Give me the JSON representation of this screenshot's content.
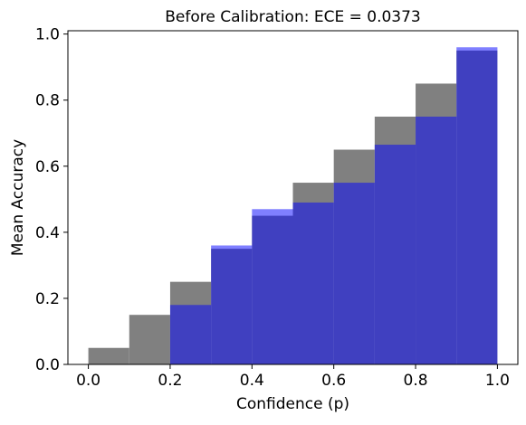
{
  "chart_data": {
    "type": "bar",
    "title": "Before Calibration: ECE = 0.0373",
    "xlabel": "Confidence (p)",
    "ylabel": "Mean Accuracy",
    "xlim": [
      -0.05,
      1.05
    ],
    "ylim": [
      0.0,
      1.01
    ],
    "xticks": [
      "0.0",
      "0.2",
      "0.4",
      "0.6",
      "0.8",
      "1.0"
    ],
    "yticks": [
      "0.0",
      "0.2",
      "0.4",
      "0.6",
      "0.8",
      "1.0"
    ],
    "grid": false,
    "bin_edges": [
      0.0,
      0.1,
      0.2,
      0.3,
      0.4,
      0.5,
      0.6,
      0.7,
      0.8,
      0.9,
      1.0
    ],
    "series": [
      {
        "name": "",
        "color": "#808080",
        "values": [
          0.05,
          0.15,
          0.25,
          0.35,
          0.45,
          0.55,
          0.65,
          0.75,
          0.85,
          0.95
        ]
      },
      {
        "name": "",
        "color": "#0000ff",
        "opacity": 0.5,
        "values": [
          0.0,
          0.0,
          0.18,
          0.36,
          0.47,
          0.49,
          0.55,
          0.665,
          0.75,
          0.96
        ]
      }
    ]
  }
}
